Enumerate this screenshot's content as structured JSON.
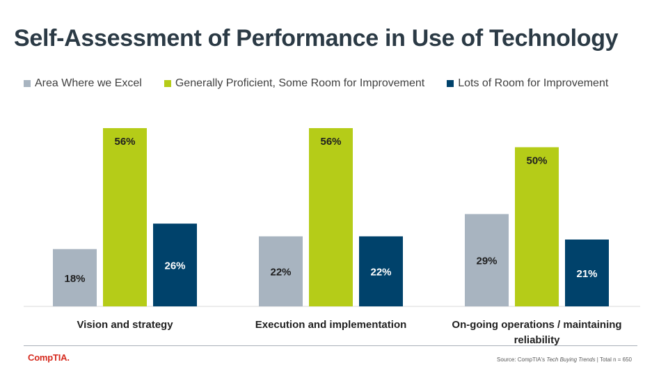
{
  "title": "Self-Assessment of Performance in Use of Technology",
  "chart_data": {
    "type": "bar",
    "title": "Self-Assessment of Performance in Use of Technology",
    "categories": [
      [
        "Vision and strategy"
      ],
      [
        "Execution and implementation"
      ],
      [
        "On-going operations / maintaining",
        "reliability"
      ]
    ],
    "series": [
      {
        "name": "Area Where we Excel",
        "color": "#a8b4c0",
        "label_color": "#1f1f1f",
        "values": [
          18,
          22,
          29
        ]
      },
      {
        "name": "Generally Proficient, Some Room for Improvement",
        "color": "#b5cc18",
        "label_color": "#1f1f1f",
        "values": [
          56,
          56,
          50
        ]
      },
      {
        "name": "Lots of Room for Improvement",
        "color": "#00426b",
        "label_color": "#ffffff",
        "values": [
          26,
          22,
          21
        ]
      }
    ],
    "value_suffix": "%",
    "ylim": [
      0,
      56
    ],
    "xlabel": "",
    "ylabel": "",
    "legend_position": "top"
  },
  "footer": {
    "logo_text": "CompTIA.",
    "source_prefix": "Source:  CompTIA's ",
    "source_italic": "Tech Buying Trends",
    "source_suffix": " | Total n = 650"
  }
}
